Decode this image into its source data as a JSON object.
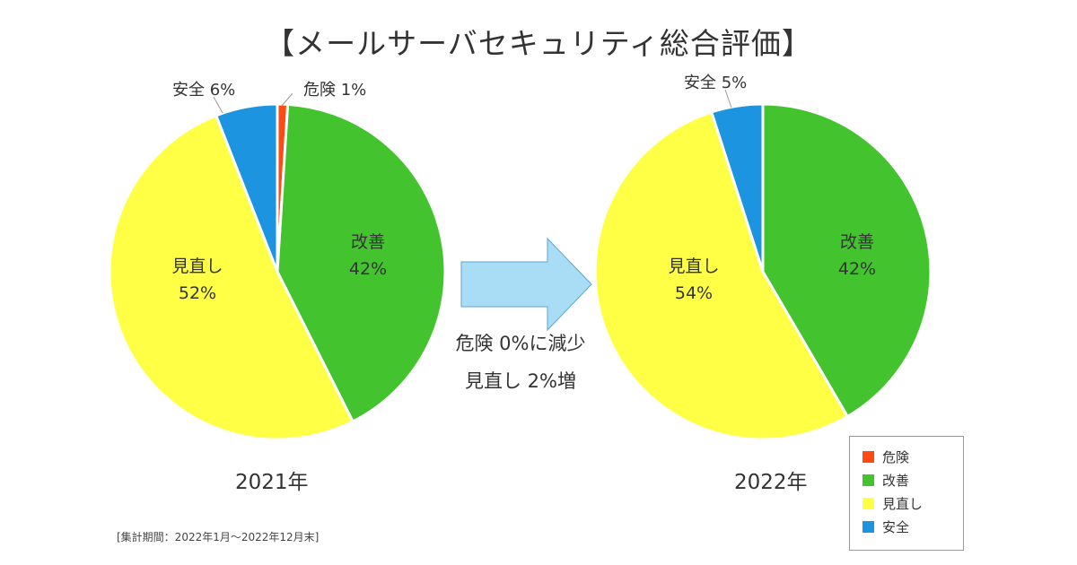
{
  "title": "【メールサーバセキュリティ総合評価】",
  "middle_text": {
    "line1": "危険 0%に減少",
    "line2": "見直し 2%増"
  },
  "footnote": "[集計期間：2022年1月～2022年12月末]",
  "legend": [
    {
      "label": "危険",
      "color": "#ff4a14"
    },
    {
      "label": "改善",
      "color": "#43c32d"
    },
    {
      "label": "見直し",
      "color": "#ffff45"
    },
    {
      "label": "安全",
      "color": "#1d94df"
    }
  ],
  "chart_data": [
    {
      "type": "pie",
      "title": "2021年",
      "slices": [
        {
          "label": "危険",
          "value": 1,
          "display": "危険 1%",
          "color": "#ff4a14"
        },
        {
          "label": "改善",
          "value": 42,
          "display": "42%",
          "color": "#43c32d"
        },
        {
          "label": "見直し",
          "value": 52,
          "display": "52%",
          "color": "#ffff45"
        },
        {
          "label": "安全",
          "value": 6,
          "display": "安全 6%",
          "color": "#1d94df"
        }
      ]
    },
    {
      "type": "pie",
      "title": "2022年",
      "slices": [
        {
          "label": "改善",
          "value": 42,
          "display": "42%",
          "color": "#43c32d"
        },
        {
          "label": "見直し",
          "value": 54,
          "display": "54%",
          "color": "#ffff45"
        },
        {
          "label": "安全",
          "value": 5,
          "display": "安全 5%",
          "color": "#1d94df"
        }
      ]
    }
  ],
  "colors": {
    "arrow_fill": "#a9dcf5",
    "arrow_stroke": "#5ba6d2"
  }
}
